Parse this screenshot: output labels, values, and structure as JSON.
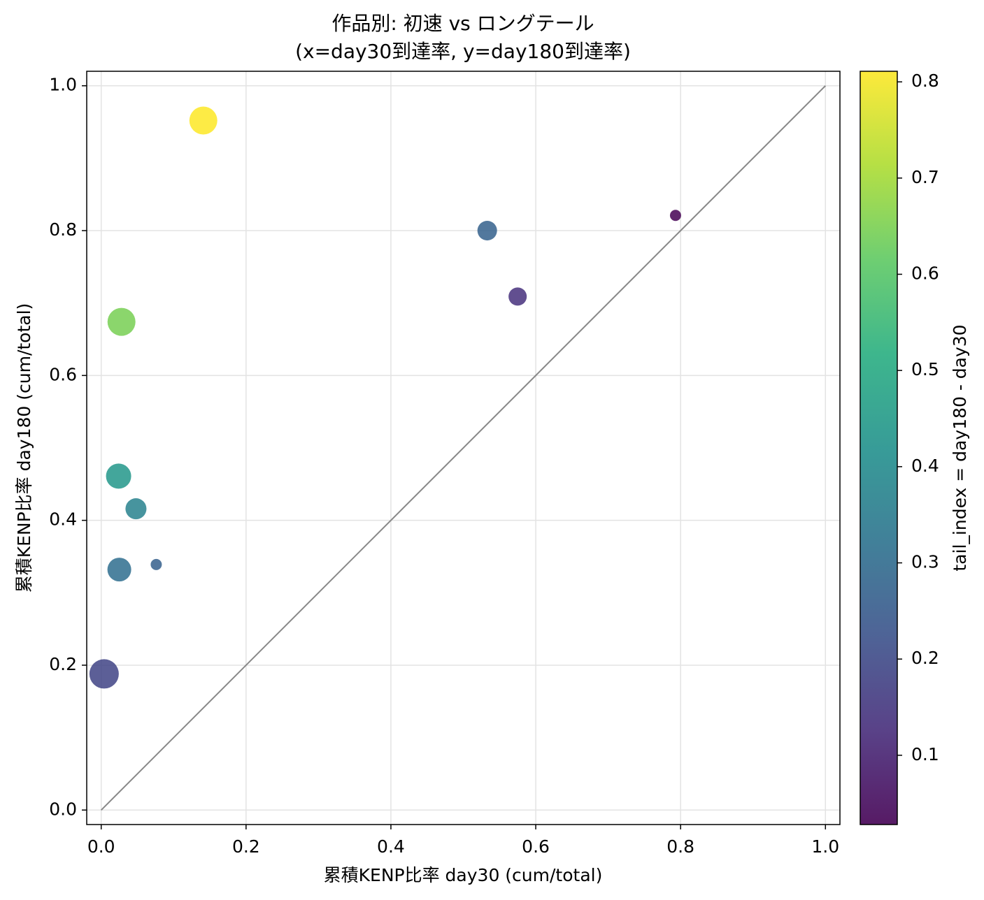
{
  "chart_data": {
    "type": "scatter",
    "title_lines": [
      "作品別: 初速 vs ロングテール",
      "(x=day30到達率, y=day180到達率)"
    ],
    "xlabel": "累積KENP比率 day30 (cum/total)",
    "ylabel": "累積KENP比率 day180 (cum/total)",
    "xlim": [
      -0.02,
      1.02
    ],
    "ylim": [
      -0.02,
      1.02
    ],
    "xticks": [
      {
        "value": 0,
        "label": "0.0"
      },
      0.2,
      0.4,
      0.6,
      0.8,
      {
        "value": 1,
        "label": "1.0"
      }
    ],
    "yticks": [
      {
        "value": 0,
        "label": "0.0"
      },
      0.2,
      0.4,
      0.6,
      0.8,
      {
        "value": 1,
        "label": "1.0"
      }
    ],
    "grid": true,
    "series": [
      {
        "x": [
          0.141,
          0.793,
          0.533,
          0.575,
          0.028,
          0.024,
          0.048,
          0.076,
          0.025,
          0.004
        ],
        "y": [
          0.952,
          0.821,
          0.8,
          0.709,
          0.674,
          0.461,
          0.416,
          0.339,
          0.332,
          0.188
        ],
        "sizes": [
          207,
          33,
          102,
          88,
          207,
          168,
          117,
          33,
          150,
          229
        ],
        "color_values": [
          0.811,
          0.028,
          0.267,
          0.134,
          0.646,
          0.437,
          0.368,
          0.263,
          0.307,
          0.184
        ]
      }
    ],
    "colormap": "viridis",
    "alpha": 0.85,
    "clim": [
      0.028,
      0.811
    ],
    "colorbar_ticks": [
      0.1,
      0.2,
      0.3,
      0.4,
      0.5,
      0.6,
      0.7,
      0.8
    ],
    "colorbar_label": "tail_index = day180 - day30",
    "reference_line": {
      "x": [
        0,
        1
      ],
      "y": [
        0,
        1
      ],
      "color": "#888888"
    }
  }
}
